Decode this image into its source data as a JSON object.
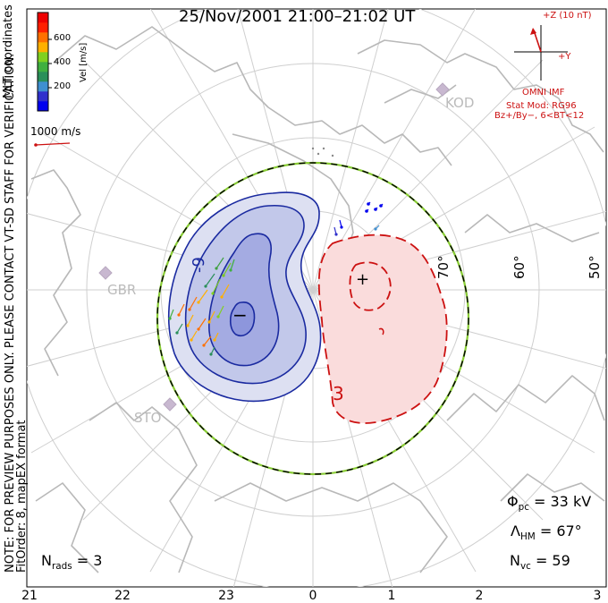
{
  "title": "25/Nov/2001 21:00–21:02 UT",
  "mlt_labels": [
    "21",
    "22",
    "23",
    "0",
    "1",
    "2",
    "3"
  ],
  "lat_labels": [
    "70°",
    "60°",
    "50°"
  ],
  "colorbar": {
    "title": "Vel [m/s]",
    "ticks": [
      "600",
      "400",
      "200"
    ],
    "colors": [
      "#0000ee",
      "#3030cc",
      "#3f8fd0",
      "#2a8f5a",
      "#40b040",
      "#80d020",
      "#ffb000",
      "#ff7000",
      "#ff2000",
      "#ee0000"
    ]
  },
  "coord_label": "MLT coordinates",
  "scale": {
    "label": "1000 m/s",
    "color": "#cc1111"
  },
  "preview_note": "NOTE: FOR PREVIEW PURPOSES ONLY. PLEASE CONTACT VT-SD STAFF FOR VERIFICATION.",
  "fit_info": "FitOrder: 8, mapEX format",
  "imf": {
    "z_label": "+Z (10 nT)",
    "y_label": "+Y",
    "source": "OMNI IMF",
    "stat_mod": "Stat Mod: RG96",
    "condition": "Bz+/By−, 6<BT<12"
  },
  "sites": [
    "KOD",
    "GBR",
    "STO"
  ],
  "contours": {
    "negative_label": "-9",
    "positive_label": "3",
    "neg_marker": "−",
    "pos_marker": "+"
  },
  "stats": {
    "phi_pc": {
      "sym": "Φ",
      "sub": "pc",
      "value": "= 33 kV"
    },
    "hm": {
      "sym": "Λ",
      "sub": "HM",
      "value": "= 67°"
    },
    "nvc": {
      "sym": "N",
      "sub": "vc",
      "value": "= 59"
    },
    "nrads": {
      "sym": "N",
      "sub": "rads",
      "value": "= 3"
    }
  }
}
